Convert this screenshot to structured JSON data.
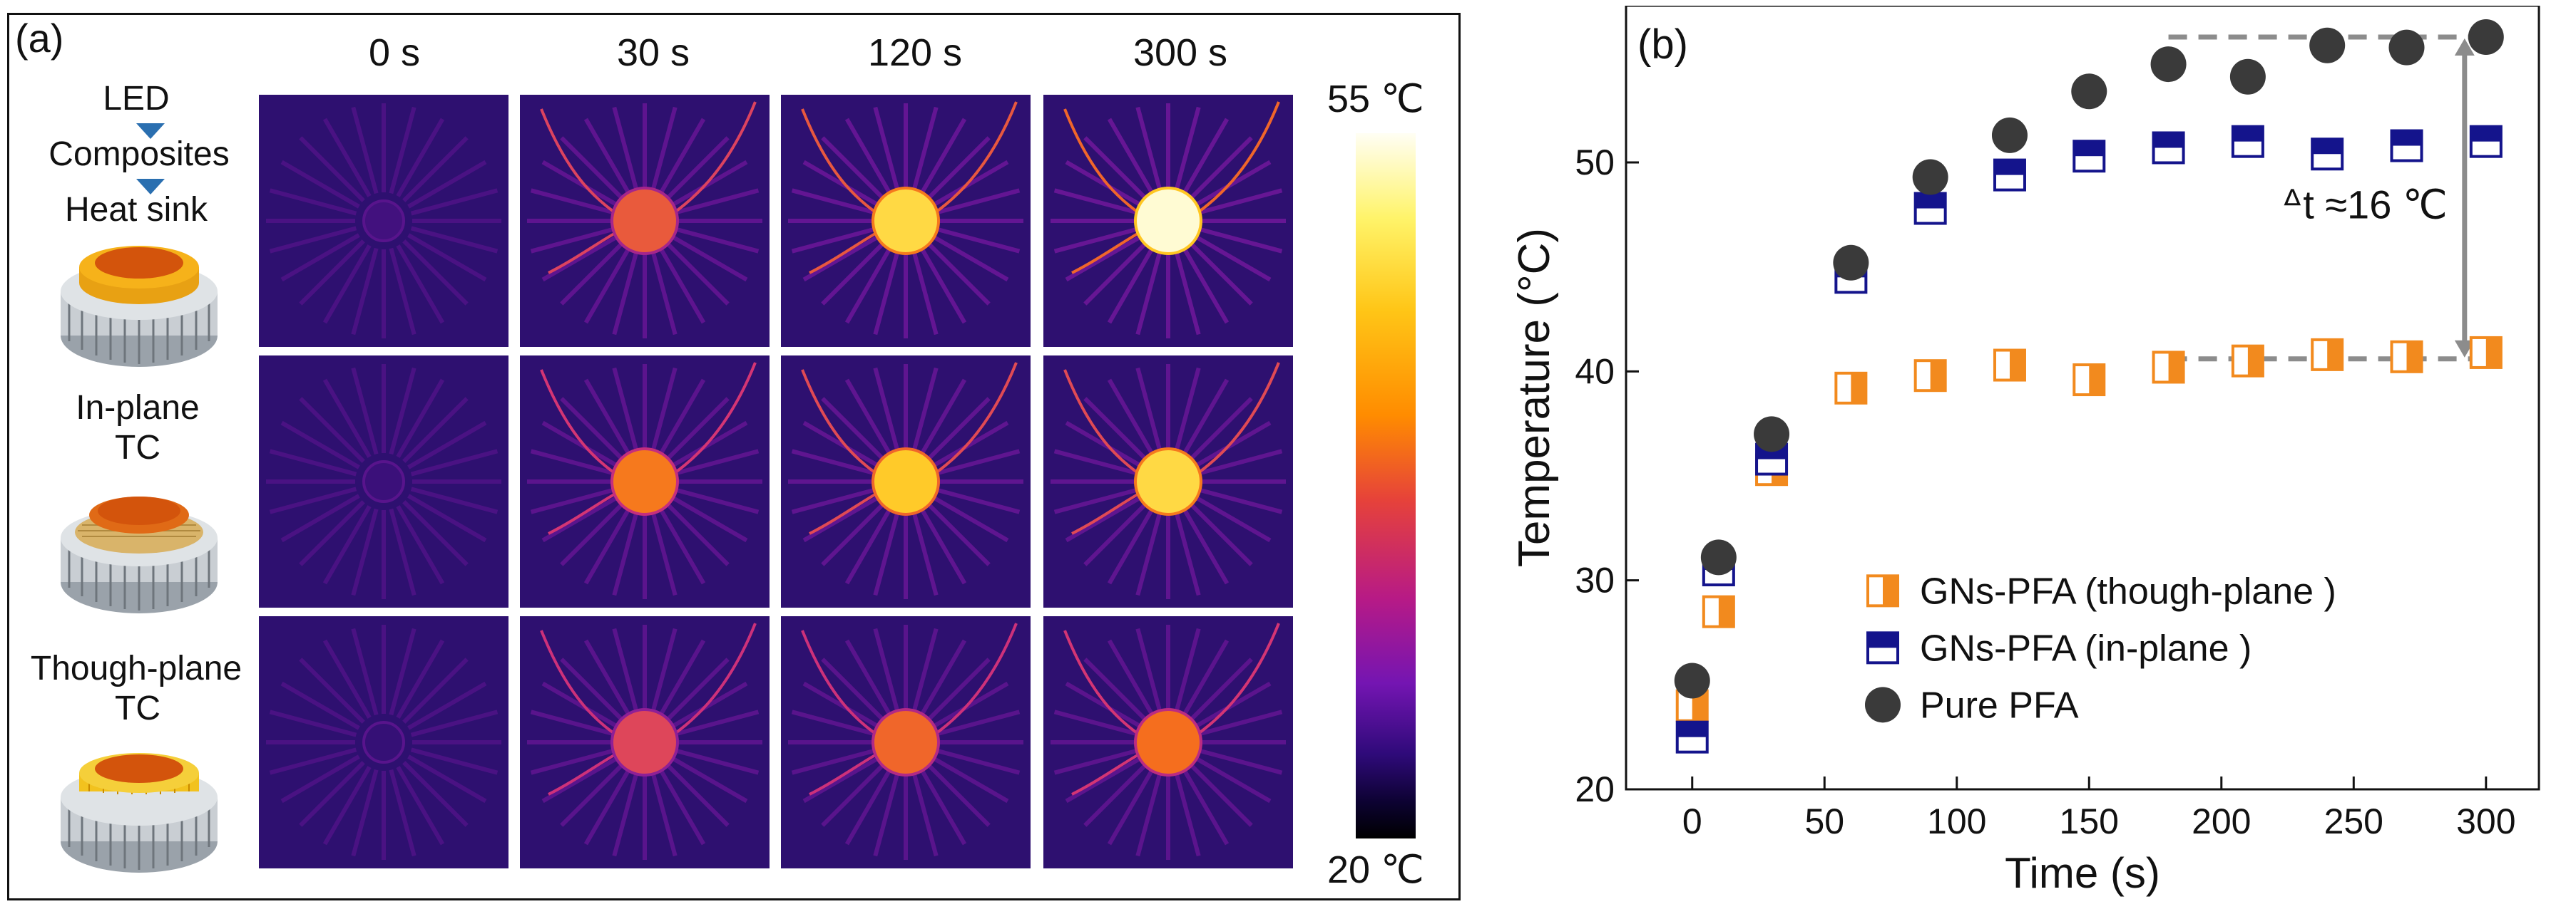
{
  "panel_a": {
    "label": "(a)",
    "time_labels": [
      "0 s",
      "30 s",
      "120 s",
      "300 s"
    ],
    "diagram": {
      "led": "LED",
      "composites": "Composites",
      "heat_sink": "Heat sink"
    },
    "rows": [
      {
        "label_line1": "",
        "label_line2": "",
        "hotspot": [
          0.08,
          0.55,
          0.82,
          0.97
        ],
        "wires": [
          0.0,
          0.55,
          0.7,
          0.8
        ]
      },
      {
        "label_line1": "In-plane",
        "label_line2": "TC",
        "hotspot": [
          0.06,
          0.62,
          0.78,
          0.82
        ],
        "wires": [
          0.0,
          0.45,
          0.6,
          0.6
        ]
      },
      {
        "label_line1": "Though-plane",
        "label_line2": "TC",
        "hotspot": [
          0.04,
          0.5,
          0.58,
          0.6
        ],
        "wires": [
          0.0,
          0.4,
          0.4,
          0.45
        ]
      }
    ],
    "colorbar": {
      "max_label": "55 ℃",
      "min_label": "20 ℃"
    }
  },
  "chart_data": {
    "type": "scatter",
    "panel_label": "(b)",
    "xlabel": "Time (s)",
    "ylabel": "Temperature (°C)",
    "xlim": [
      -25,
      320
    ],
    "ylim": [
      20,
      57.5
    ],
    "x_ticks": [
      0,
      50,
      100,
      150,
      200,
      250,
      300
    ],
    "y_ticks": [
      20,
      30,
      40,
      50
    ],
    "x": [
      0,
      10,
      30,
      60,
      90,
      120,
      150,
      180,
      210,
      240,
      270,
      300
    ],
    "series": [
      {
        "name": "GNs-PFA (though-plane )",
        "marker": "half-right-square",
        "color": "#f28a1e",
        "values": [
          24,
          28.5,
          35.3,
          39.2,
          39.8,
          40.3,
          39.6,
          40.2,
          40.5,
          40.8,
          40.7,
          40.9
        ]
      },
      {
        "name": "GNs-PFA (in-plane )",
        "marker": "half-top-square",
        "color": "#14148c",
        "values": [
          22.5,
          30.5,
          35.8,
          44.5,
          47.8,
          49.4,
          50.3,
          50.7,
          51.0,
          50.4,
          50.8,
          51.0
        ]
      },
      {
        "name": "Pure PFA",
        "marker": "circle",
        "color": "#3a3a3a",
        "values": [
          25.2,
          31.1,
          37.0,
          45.2,
          49.3,
          51.3,
          53.4,
          54.7,
          54.1,
          55.6,
          55.5,
          56.0
        ]
      }
    ],
    "annotation": {
      "text": "ᐞt ≈16 ℃",
      "from": [
        180,
        56.0
      ],
      "to": [
        300,
        56.0
      ],
      "from2": [
        180,
        40.6
      ],
      "to2": [
        300,
        40.6
      ]
    },
    "legend_position": "bottom-left",
    "colors": {
      "arrow": "#8c8c8c"
    }
  }
}
